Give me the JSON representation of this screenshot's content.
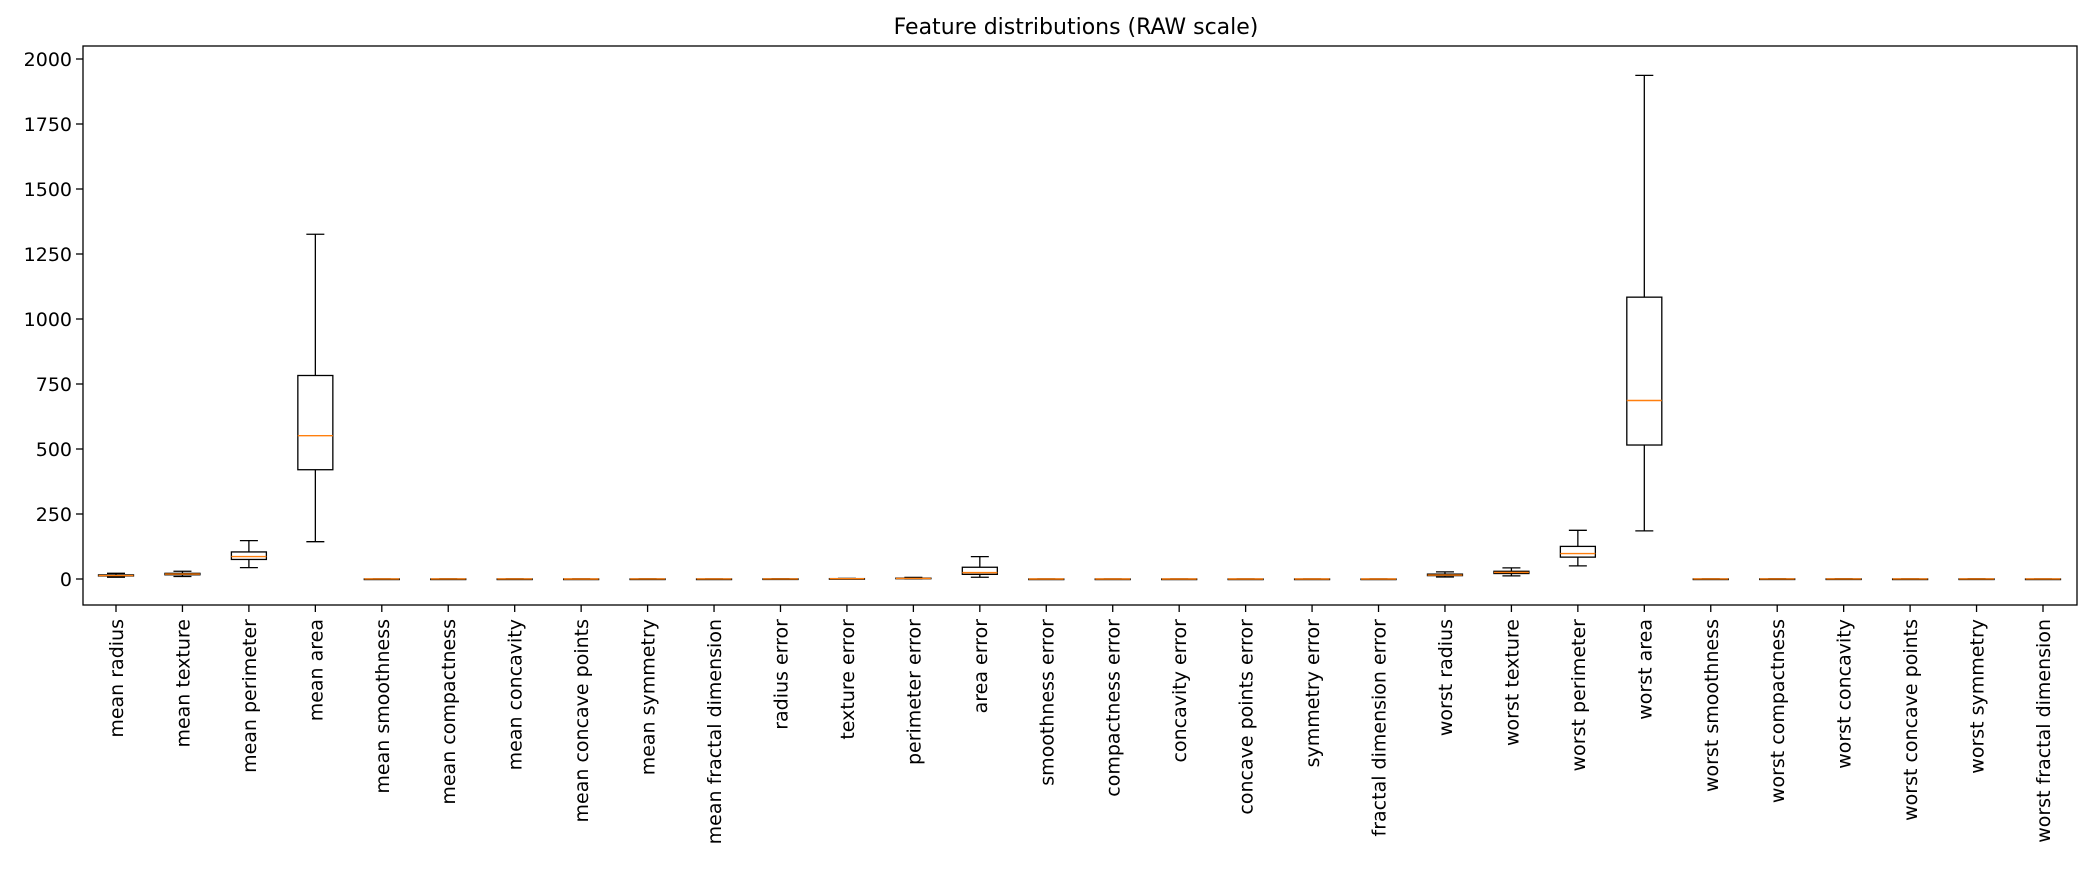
{
  "chart_data": {
    "type": "box",
    "title": "Feature distributions (RAW scale)",
    "xlabel": "",
    "ylabel": "",
    "ylim": [
      -100,
      2050
    ],
    "yticks": [
      0,
      250,
      500,
      750,
      1000,
      1250,
      1500,
      1750,
      2000
    ],
    "grid": false,
    "colors": {
      "box": "#000000",
      "median": "#ff7f0e",
      "whisker": "#000000"
    },
    "categories": [
      "mean radius",
      "mean texture",
      "mean perimeter",
      "mean area",
      "mean smoothness",
      "mean compactness",
      "mean concavity",
      "mean concave points",
      "mean symmetry",
      "mean fractal dimension",
      "radius error",
      "texture error",
      "perimeter error",
      "area error",
      "smoothness error",
      "compactness error",
      "concavity error",
      "concave points error",
      "symmetry error",
      "fractal dimension error",
      "worst radius",
      "worst texture",
      "worst perimeter",
      "worst area",
      "worst smoothness",
      "worst compactness",
      "worst concavity",
      "worst concave points",
      "worst symmetry",
      "worst fractal dimension"
    ],
    "boxes": [
      {
        "whislo": 7.0,
        "q1": 11.7,
        "med": 13.4,
        "q3": 15.8,
        "whishi": 21.9
      },
      {
        "whislo": 9.7,
        "q1": 16.2,
        "med": 18.8,
        "q3": 21.8,
        "whishi": 29.9
      },
      {
        "whislo": 43.8,
        "q1": 75.2,
        "med": 86.2,
        "q3": 104.1,
        "whishi": 147.5
      },
      {
        "whislo": 143.5,
        "q1": 420.3,
        "med": 551.1,
        "q3": 782.7,
        "whishi": 1326.0
      },
      {
        "whislo": 0.06,
        "q1": 0.09,
        "med": 0.1,
        "q3": 0.11,
        "whishi": 0.13
      },
      {
        "whislo": 0.02,
        "q1": 0.06,
        "med": 0.09,
        "q3": 0.13,
        "whishi": 0.23
      },
      {
        "whislo": 0.0,
        "q1": 0.03,
        "med": 0.06,
        "q3": 0.13,
        "whishi": 0.28
      },
      {
        "whislo": 0.0,
        "q1": 0.02,
        "med": 0.03,
        "q3": 0.07,
        "whishi": 0.15
      },
      {
        "whislo": 0.11,
        "q1": 0.16,
        "med": 0.18,
        "q3": 0.2,
        "whishi": 0.25
      },
      {
        "whislo": 0.05,
        "q1": 0.06,
        "med": 0.06,
        "q3": 0.07,
        "whishi": 0.08
      },
      {
        "whislo": 0.11,
        "q1": 0.23,
        "med": 0.32,
        "q3": 0.48,
        "whishi": 0.85
      },
      {
        "whislo": 0.36,
        "q1": 0.83,
        "med": 1.11,
        "q3": 1.47,
        "whishi": 2.43
      },
      {
        "whislo": 0.76,
        "q1": 1.61,
        "med": 2.29,
        "q3": 3.36,
        "whishi": 5.98
      },
      {
        "whislo": 6.8,
        "q1": 17.9,
        "med": 24.5,
        "q3": 45.2,
        "whishi": 86.2
      },
      {
        "whislo": 0.0,
        "q1": 0.01,
        "med": 0.01,
        "q3": 0.01,
        "whishi": 0.01
      },
      {
        "whislo": 0.0,
        "q1": 0.01,
        "med": 0.02,
        "q3": 0.03,
        "whishi": 0.06
      },
      {
        "whislo": 0.0,
        "q1": 0.02,
        "med": 0.03,
        "q3": 0.04,
        "whishi": 0.08
      },
      {
        "whislo": 0.0,
        "q1": 0.01,
        "med": 0.01,
        "q3": 0.01,
        "whishi": 0.02
      },
      {
        "whislo": 0.01,
        "q1": 0.02,
        "med": 0.02,
        "q3": 0.02,
        "whishi": 0.04
      },
      {
        "whislo": 0.0,
        "q1": 0.0,
        "med": 0.0,
        "q3": 0.0,
        "whishi": 0.01
      },
      {
        "whislo": 7.9,
        "q1": 13.0,
        "med": 15.0,
        "q3": 18.8,
        "whishi": 27.5
      },
      {
        "whislo": 12.0,
        "q1": 21.1,
        "med": 25.4,
        "q3": 29.7,
        "whishi": 42.7
      },
      {
        "whislo": 50.4,
        "q1": 84.1,
        "med": 97.7,
        "q3": 125.4,
        "whishi": 187.3
      },
      {
        "whislo": 185.2,
        "q1": 515.3,
        "med": 686.5,
        "q3": 1084.0,
        "whishi": 1937.0
      },
      {
        "whislo": 0.07,
        "q1": 0.12,
        "med": 0.13,
        "q3": 0.15,
        "whishi": 0.19
      },
      {
        "whislo": 0.03,
        "q1": 0.15,
        "med": 0.21,
        "q3": 0.34,
        "whishi": 0.63
      },
      {
        "whislo": 0.0,
        "q1": 0.11,
        "med": 0.23,
        "q3": 0.38,
        "whishi": 0.79
      },
      {
        "whislo": 0.0,
        "q1": 0.06,
        "med": 0.1,
        "q3": 0.16,
        "whishi": 0.29
      },
      {
        "whislo": 0.16,
        "q1": 0.25,
        "med": 0.28,
        "q3": 0.32,
        "whishi": 0.42
      },
      {
        "whislo": 0.06,
        "q1": 0.07,
        "med": 0.08,
        "q3": 0.09,
        "whishi": 0.12
      }
    ]
  }
}
